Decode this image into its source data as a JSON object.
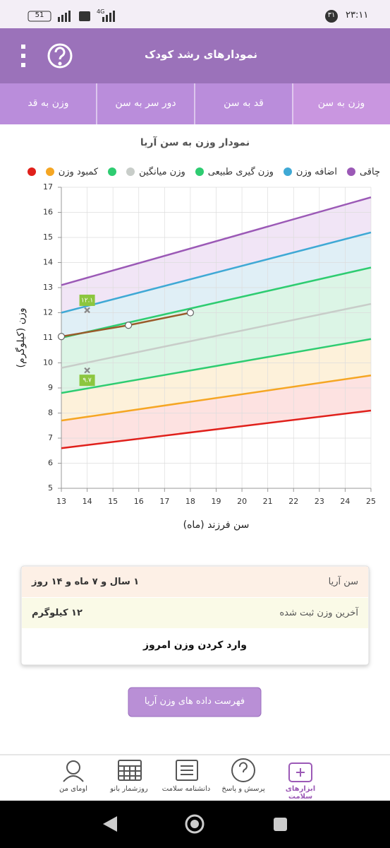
{
  "status_bar": {
    "time": "۲۳:۱۱",
    "badge": "۳۱",
    "battery": "51",
    "network": "4G"
  },
  "header": {
    "title": "نمودارهای رشد کودک"
  },
  "tabs": [
    "وزن به سن",
    "قد به سن",
    "دور سر به سن",
    "وزن به قد"
  ],
  "chart_data": {
    "type": "line",
    "title": "نمودار وزن به سن آریا",
    "x_label": "سن فرزند (ماه)",
    "y_label": "وزن (کیلوگرم)",
    "xlim": [
      13,
      25
    ],
    "xticks": [
      13,
      14,
      15,
      16,
      17,
      18,
      19,
      20,
      21,
      22,
      23,
      24,
      25
    ],
    "ylim": [
      5,
      17
    ],
    "yticks": [
      5,
      6,
      7,
      8,
      9,
      10,
      11,
      12,
      13,
      14,
      15,
      16,
      17
    ],
    "grid": true,
    "series": [
      {
        "name": "چاقی",
        "color": "#9b59b6",
        "fill": "#f1e5f6",
        "x": [
          13,
          25
        ],
        "values": [
          13.1,
          16.6
        ]
      },
      {
        "name": "اضافه وزن",
        "color": "#3fa9d5",
        "fill": "#e0eff6",
        "x": [
          13,
          25
        ],
        "values": [
          12.0,
          15.2
        ]
      },
      {
        "name": "وزن گیری طبیعی",
        "color": "#2ecc71",
        "fill": "#dcf5e6",
        "x": [
          13,
          25
        ],
        "values": [
          11.0,
          13.8
        ]
      },
      {
        "name": "وزن میانگین",
        "color": "#c8cdc9",
        "fill": "#dcf5e6",
        "x": [
          13,
          25
        ],
        "values": [
          9.8,
          12.35
        ]
      },
      {
        "color": "#2ecc71",
        "fill": "#fdf1da",
        "x": [
          13,
          25
        ],
        "values": [
          8.8,
          10.95
        ]
      },
      {
        "name": "کمبود وزن",
        "color": "#f5a623",
        "fill": "#fde2e1",
        "x": [
          13,
          25
        ],
        "values": [
          7.7,
          9.5
        ]
      },
      {
        "color": "#e0201b",
        "x": [
          13,
          25
        ],
        "values": [
          6.6,
          8.1
        ]
      }
    ],
    "child": {
      "color": "#9a5b2a",
      "x": [
        13,
        15.6,
        18
      ],
      "values": [
        11.05,
        11.5,
        12.0
      ]
    },
    "points": {
      "color": "#8cc63f",
      "x": [
        14,
        14
      ],
      "values": [
        12.1,
        9.7
      ],
      "value_labels": [
        "۱۲.۱",
        "۹.۷"
      ]
    }
  },
  "info": {
    "rows": [
      {
        "label": "سن آریا",
        "value": "۱ سال و ۷ ماه و ۱۴ روز"
      },
      {
        "label": "آخرین وزن ثبت شده",
        "value": "۱۲ کیلوگرم"
      }
    ],
    "action": "وارد کردن وزن امروز"
  },
  "button": "فهرست داده های وزن آریا",
  "nav": [
    "ابزارهای سلامت",
    "پرسش و پاسخ",
    "دانشنامه سلامت",
    "روزشمار بانو",
    "اومای من"
  ]
}
